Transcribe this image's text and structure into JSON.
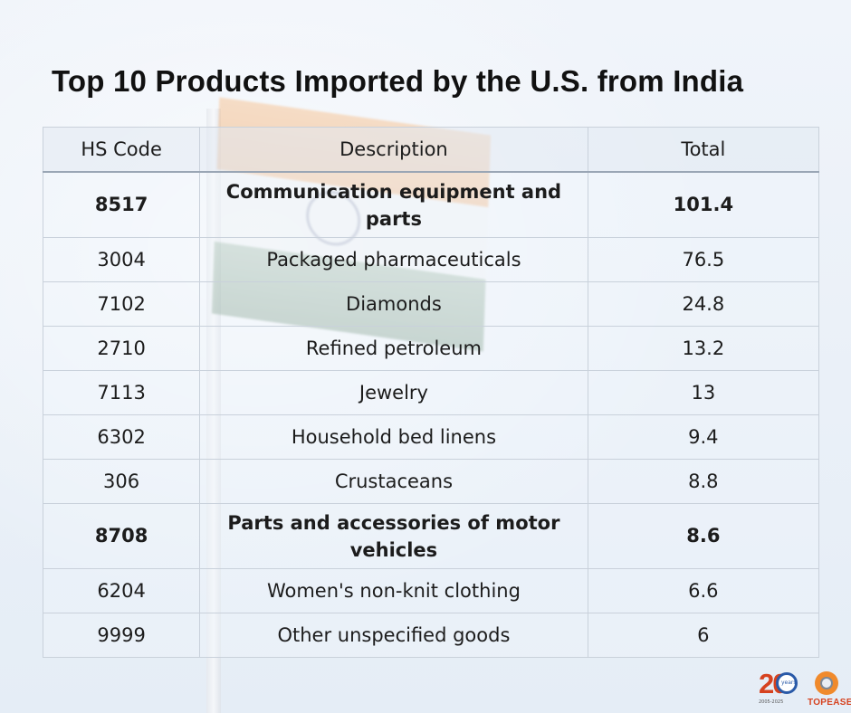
{
  "title": "Top 10 Products Imported by the U.S. from India",
  "table": {
    "headers": [
      "HS Code",
      "Description",
      "Total"
    ],
    "rows": [
      {
        "code": "8517",
        "description": "Communication equipment and parts",
        "total": "101.4",
        "bold": true
      },
      {
        "code": "3004",
        "description": "Packaged pharmaceuticals",
        "total": "76.5",
        "bold": false
      },
      {
        "code": "7102",
        "description": "Diamonds",
        "total": "24.8",
        "bold": false
      },
      {
        "code": "2710",
        "description": "Refined petroleum",
        "total": "13.2",
        "bold": false
      },
      {
        "code": "7113",
        "description": "Jewelry",
        "total": "13",
        "bold": false
      },
      {
        "code": "6302",
        "description": "Household bed linens",
        "total": "9.4",
        "bold": false
      },
      {
        "code": "306",
        "description": "Crustaceans",
        "total": "8.8",
        "bold": false
      },
      {
        "code": "8708",
        "description": "Parts and accessories of motor vehicles",
        "total": "8.6",
        "bold": true
      },
      {
        "code": "6204",
        "description": "Women's non-knit clothing",
        "total": "6.6",
        "bold": false
      },
      {
        "code": "9999",
        "description": "Other unspecified goods",
        "total": "6",
        "bold": false
      }
    ]
  },
  "logos": {
    "anniversary": {
      "number": "20",
      "ring_text": "years",
      "tagline": "2005-2025"
    },
    "brand": {
      "name": "TOPEASE"
    }
  },
  "colors": {
    "brand_orange": "#f08a2c",
    "brand_red": "#d6421f",
    "anniversary_blue": "#2a5aa8",
    "text": "#1c1c1c"
  },
  "background": {
    "image": "faded-indian-flag-on-pole"
  }
}
